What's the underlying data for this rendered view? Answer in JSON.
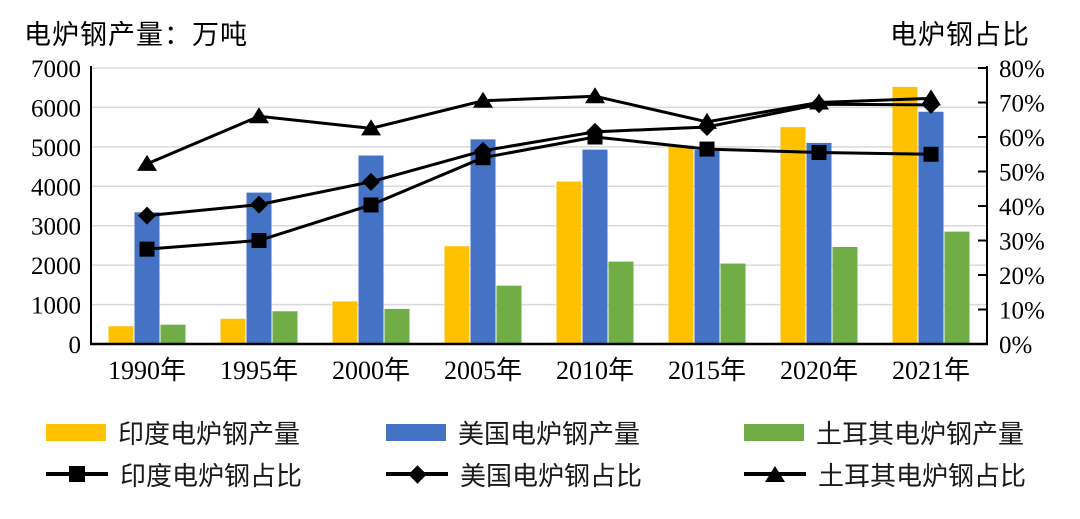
{
  "chart_data": {
    "type": "bar",
    "subtype": "grouped bars with overlaid lines, dual y-axis",
    "categories": [
      "1990年",
      "1995年",
      "2000年",
      "2005年",
      "2010年",
      "2015年",
      "2020年",
      "2021年"
    ],
    "left_axis": {
      "title": "电炉钢产量：万吨",
      "min": 0,
      "max": 7000,
      "step": 1000,
      "ticks": [
        "0",
        "1000",
        "2000",
        "3000",
        "4000",
        "5000",
        "6000",
        "7000"
      ]
    },
    "right_axis": {
      "title": "电炉钢占比",
      "min": 0,
      "max": 80,
      "step": 10,
      "ticks": [
        "0%",
        "10%",
        "20%",
        "30%",
        "40%",
        "50%",
        "60%",
        "70%",
        "80%"
      ]
    },
    "grid": true,
    "gridline_color": "#D9D9D9",
    "axis_color": "#000000",
    "legend_position": "bottom",
    "bar_series": [
      {
        "id": "india-production",
        "name": "印度电炉钢产量",
        "color": "#FFC000",
        "values": [
          450,
          640,
          1080,
          2480,
          4120,
          5040,
          5500,
          6520
        ]
      },
      {
        "id": "us-production",
        "name": "美国电炉钢产量",
        "color": "#4472C4",
        "values": [
          3340,
          3840,
          4780,
          5190,
          4930,
          4920,
          5100,
          5890
        ]
      },
      {
        "id": "turkey-production",
        "name": "土耳其电炉钢产量",
        "color": "#70AD47",
        "values": [
          490,
          830,
          890,
          1480,
          2090,
          2040,
          2460,
          2850
        ]
      }
    ],
    "line_series": [
      {
        "id": "india-share",
        "name": "印度电炉钢占比",
        "color": "#000000",
        "marker": "square",
        "axis": "right",
        "values": [
          27.5,
          30,
          40.3,
          54,
          60,
          56.5,
          55.5,
          55
        ]
      },
      {
        "id": "us-share",
        "name": "美国电炉钢占比",
        "color": "#000000",
        "marker": "diamond",
        "axis": "right",
        "values": [
          37.2,
          40.4,
          47,
          56,
          61.5,
          62.9,
          69.5,
          69.3
        ]
      },
      {
        "id": "turkey-share",
        "name": "土耳其电炉钢占比",
        "color": "#000000",
        "marker": "triangle",
        "axis": "right",
        "values": [
          52.2,
          66,
          62.5,
          70.5,
          71.8,
          64.4,
          70,
          71.2
        ]
      }
    ]
  }
}
